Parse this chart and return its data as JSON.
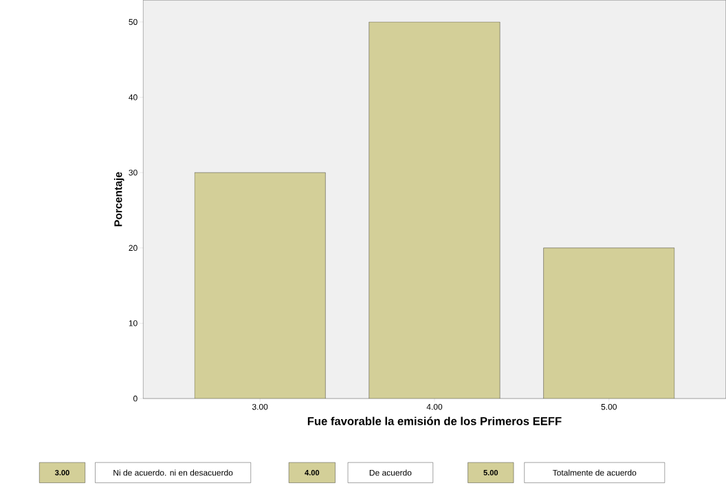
{
  "chart_data": {
    "type": "bar",
    "xlabel": "Fue favorable la emisión de los Primeros EEFF",
    "ylabel": "Porcentaje",
    "categories": [
      "3.00",
      "4.00",
      "5.00"
    ],
    "values": [
      30,
      50,
      20
    ],
    "color": "#d3cf98",
    "ylim": [
      0,
      52.9
    ],
    "yticks": [
      0,
      10,
      20,
      30,
      40,
      50
    ],
    "annotations": [
      "3.00",
      "Ni de acuerdo. ni en desacuerdo",
      "4.00",
      "De acuerdo",
      "5.00",
      "Totalmente de acuerdo"
    ]
  }
}
